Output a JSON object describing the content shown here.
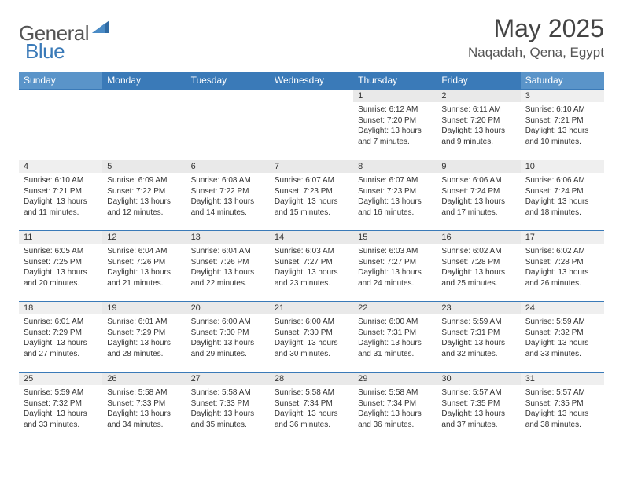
{
  "logo": {
    "text1": "General",
    "text2": "Blue"
  },
  "title": "May 2025",
  "location": "Naqadah, Qena, Egypt",
  "colors": {
    "header_bg": "#3a7ab8",
    "header_weekend_bg": "#5a94c9",
    "daynum_bg": "#e9e9e9",
    "border": "#3a7ab8",
    "text": "#333333"
  },
  "day_headers": [
    "Sunday",
    "Monday",
    "Tuesday",
    "Wednesday",
    "Thursday",
    "Friday",
    "Saturday"
  ],
  "weeks": [
    [
      {
        "n": "",
        "sr": "",
        "ss": "",
        "dl": ""
      },
      {
        "n": "",
        "sr": "",
        "ss": "",
        "dl": ""
      },
      {
        "n": "",
        "sr": "",
        "ss": "",
        "dl": ""
      },
      {
        "n": "",
        "sr": "",
        "ss": "",
        "dl": ""
      },
      {
        "n": "1",
        "sr": "Sunrise: 6:12 AM",
        "ss": "Sunset: 7:20 PM",
        "dl": "Daylight: 13 hours and 7 minutes."
      },
      {
        "n": "2",
        "sr": "Sunrise: 6:11 AM",
        "ss": "Sunset: 7:20 PM",
        "dl": "Daylight: 13 hours and 9 minutes."
      },
      {
        "n": "3",
        "sr": "Sunrise: 6:10 AM",
        "ss": "Sunset: 7:21 PM",
        "dl": "Daylight: 13 hours and 10 minutes."
      }
    ],
    [
      {
        "n": "4",
        "sr": "Sunrise: 6:10 AM",
        "ss": "Sunset: 7:21 PM",
        "dl": "Daylight: 13 hours and 11 minutes."
      },
      {
        "n": "5",
        "sr": "Sunrise: 6:09 AM",
        "ss": "Sunset: 7:22 PM",
        "dl": "Daylight: 13 hours and 12 minutes."
      },
      {
        "n": "6",
        "sr": "Sunrise: 6:08 AM",
        "ss": "Sunset: 7:22 PM",
        "dl": "Daylight: 13 hours and 14 minutes."
      },
      {
        "n": "7",
        "sr": "Sunrise: 6:07 AM",
        "ss": "Sunset: 7:23 PM",
        "dl": "Daylight: 13 hours and 15 minutes."
      },
      {
        "n": "8",
        "sr": "Sunrise: 6:07 AM",
        "ss": "Sunset: 7:23 PM",
        "dl": "Daylight: 13 hours and 16 minutes."
      },
      {
        "n": "9",
        "sr": "Sunrise: 6:06 AM",
        "ss": "Sunset: 7:24 PM",
        "dl": "Daylight: 13 hours and 17 minutes."
      },
      {
        "n": "10",
        "sr": "Sunrise: 6:06 AM",
        "ss": "Sunset: 7:24 PM",
        "dl": "Daylight: 13 hours and 18 minutes."
      }
    ],
    [
      {
        "n": "11",
        "sr": "Sunrise: 6:05 AM",
        "ss": "Sunset: 7:25 PM",
        "dl": "Daylight: 13 hours and 20 minutes."
      },
      {
        "n": "12",
        "sr": "Sunrise: 6:04 AM",
        "ss": "Sunset: 7:26 PM",
        "dl": "Daylight: 13 hours and 21 minutes."
      },
      {
        "n": "13",
        "sr": "Sunrise: 6:04 AM",
        "ss": "Sunset: 7:26 PM",
        "dl": "Daylight: 13 hours and 22 minutes."
      },
      {
        "n": "14",
        "sr": "Sunrise: 6:03 AM",
        "ss": "Sunset: 7:27 PM",
        "dl": "Daylight: 13 hours and 23 minutes."
      },
      {
        "n": "15",
        "sr": "Sunrise: 6:03 AM",
        "ss": "Sunset: 7:27 PM",
        "dl": "Daylight: 13 hours and 24 minutes."
      },
      {
        "n": "16",
        "sr": "Sunrise: 6:02 AM",
        "ss": "Sunset: 7:28 PM",
        "dl": "Daylight: 13 hours and 25 minutes."
      },
      {
        "n": "17",
        "sr": "Sunrise: 6:02 AM",
        "ss": "Sunset: 7:28 PM",
        "dl": "Daylight: 13 hours and 26 minutes."
      }
    ],
    [
      {
        "n": "18",
        "sr": "Sunrise: 6:01 AM",
        "ss": "Sunset: 7:29 PM",
        "dl": "Daylight: 13 hours and 27 minutes."
      },
      {
        "n": "19",
        "sr": "Sunrise: 6:01 AM",
        "ss": "Sunset: 7:29 PM",
        "dl": "Daylight: 13 hours and 28 minutes."
      },
      {
        "n": "20",
        "sr": "Sunrise: 6:00 AM",
        "ss": "Sunset: 7:30 PM",
        "dl": "Daylight: 13 hours and 29 minutes."
      },
      {
        "n": "21",
        "sr": "Sunrise: 6:00 AM",
        "ss": "Sunset: 7:30 PM",
        "dl": "Daylight: 13 hours and 30 minutes."
      },
      {
        "n": "22",
        "sr": "Sunrise: 6:00 AM",
        "ss": "Sunset: 7:31 PM",
        "dl": "Daylight: 13 hours and 31 minutes."
      },
      {
        "n": "23",
        "sr": "Sunrise: 5:59 AM",
        "ss": "Sunset: 7:31 PM",
        "dl": "Daylight: 13 hours and 32 minutes."
      },
      {
        "n": "24",
        "sr": "Sunrise: 5:59 AM",
        "ss": "Sunset: 7:32 PM",
        "dl": "Daylight: 13 hours and 33 minutes."
      }
    ],
    [
      {
        "n": "25",
        "sr": "Sunrise: 5:59 AM",
        "ss": "Sunset: 7:32 PM",
        "dl": "Daylight: 13 hours and 33 minutes."
      },
      {
        "n": "26",
        "sr": "Sunrise: 5:58 AM",
        "ss": "Sunset: 7:33 PM",
        "dl": "Daylight: 13 hours and 34 minutes."
      },
      {
        "n": "27",
        "sr": "Sunrise: 5:58 AM",
        "ss": "Sunset: 7:33 PM",
        "dl": "Daylight: 13 hours and 35 minutes."
      },
      {
        "n": "28",
        "sr": "Sunrise: 5:58 AM",
        "ss": "Sunset: 7:34 PM",
        "dl": "Daylight: 13 hours and 36 minutes."
      },
      {
        "n": "29",
        "sr": "Sunrise: 5:58 AM",
        "ss": "Sunset: 7:34 PM",
        "dl": "Daylight: 13 hours and 36 minutes."
      },
      {
        "n": "30",
        "sr": "Sunrise: 5:57 AM",
        "ss": "Sunset: 7:35 PM",
        "dl": "Daylight: 13 hours and 37 minutes."
      },
      {
        "n": "31",
        "sr": "Sunrise: 5:57 AM",
        "ss": "Sunset: 7:35 PM",
        "dl": "Daylight: 13 hours and 38 minutes."
      }
    ]
  ]
}
